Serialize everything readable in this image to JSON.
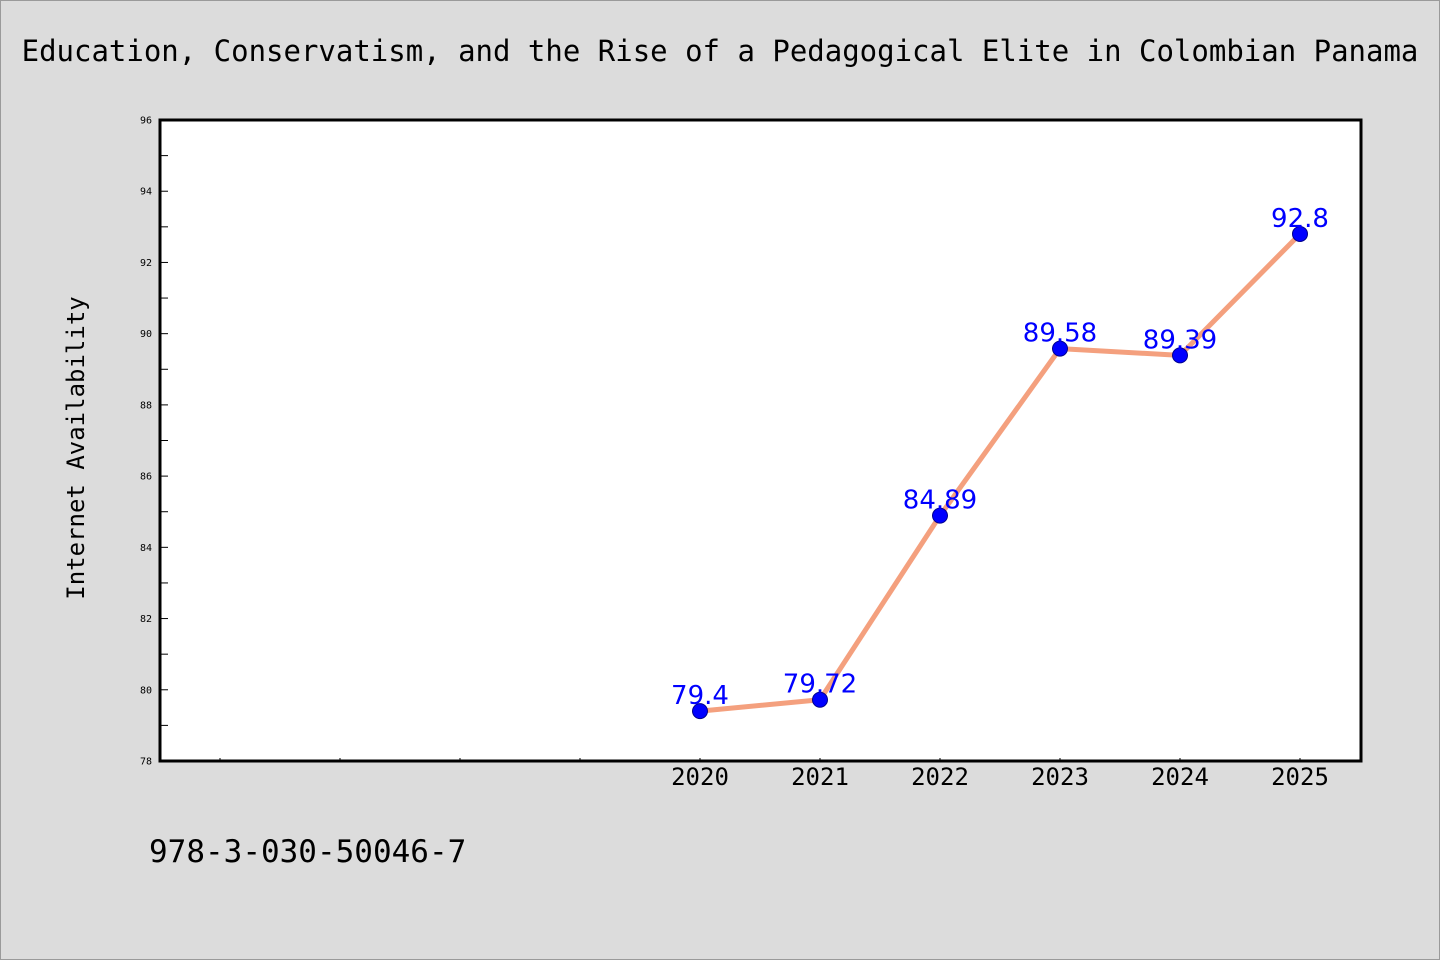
{
  "chart_data": {
    "type": "line",
    "title": "Education, Conservatism, and the Rise of a Pedagogical Elite in Colombian Panama",
    "xlabel": "",
    "ylabel": "Internet Availability",
    "categories": [
      "2020",
      "2021",
      "2022",
      "2023",
      "2024",
      "2025"
    ],
    "series": [
      {
        "values": [
          79.4,
          79.72,
          84.89,
          89.58,
          89.39,
          92.8
        ],
        "labels": [
          "79.4",
          "79.72",
          "84.89",
          "89.58",
          "89.39",
          "92.8"
        ]
      }
    ],
    "ylim": [
      78,
      96
    ],
    "yticks": [
      "78",
      "80",
      "82",
      "84",
      "86",
      "88",
      "90",
      "92",
      "94",
      "96"
    ],
    "grid": false,
    "legend": "none",
    "colors": {
      "line": "#f4a07e",
      "marker": "#0000ff",
      "marker_edge": "#00008b",
      "data_label": "#0000ff",
      "background": "#dcdcdc",
      "plot_background": "#ffffff"
    }
  },
  "footer": {
    "isbn": "978-3-030-50046-7"
  }
}
